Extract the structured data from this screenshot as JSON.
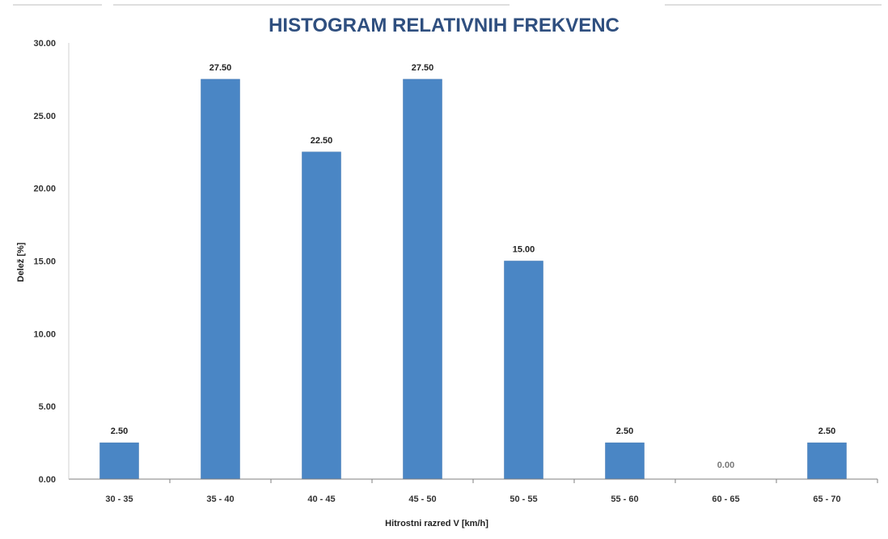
{
  "chart_data": {
    "type": "bar",
    "title": "HISTOGRAM RELATIVNIH FREKVENC",
    "xlabel": "Hitrostni razred V [km/h]",
    "ylabel": "Delež [%]",
    "categories": [
      "30 - 35",
      "35 - 40",
      "40 - 45",
      "45 - 50",
      "50 - 55",
      "55 - 60",
      "60 - 65",
      "65 - 70"
    ],
    "values": [
      2.5,
      27.5,
      22.5,
      27.5,
      15.0,
      2.5,
      0.0,
      2.5
    ],
    "data_labels": [
      "2.50",
      "27.50",
      "22.50",
      "27.50",
      "15.00",
      "2.50",
      "0.00",
      "2.50"
    ],
    "y_ticks": [
      "0.00",
      "5.00",
      "10.00",
      "15.00",
      "20.00",
      "25.00",
      "30.00"
    ],
    "ylim": [
      0,
      30
    ],
    "grid": false,
    "legend": "none",
    "colors": {
      "bar": "#4a86c5",
      "bar_edge": "#3f74ad",
      "title": "#2f4f7f",
      "axis": "#7f7f7f"
    }
  }
}
